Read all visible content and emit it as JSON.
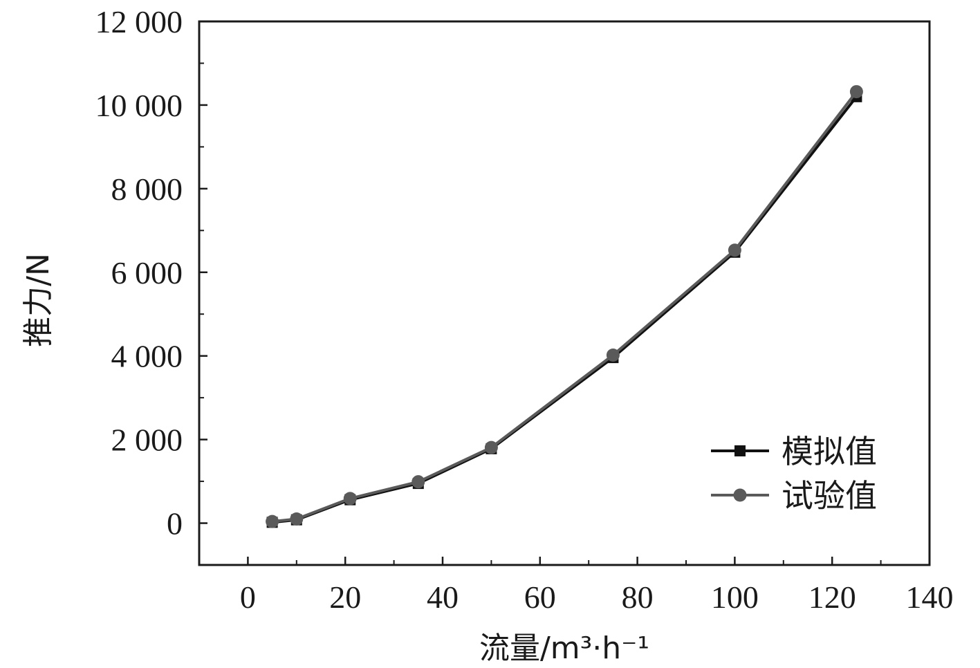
{
  "chart_data": {
    "type": "line",
    "xlabel": "流量/m³·h⁻¹",
    "ylabel": "推力/N",
    "xlim": [
      -10,
      140
    ],
    "ylim": [
      -1000,
      12000
    ],
    "x_ticks": [
      0,
      20,
      40,
      60,
      80,
      100,
      120,
      140
    ],
    "x_tick_labels": [
      "0",
      "20",
      "40",
      "60",
      "80",
      "100",
      "120",
      "140"
    ],
    "y_ticks": [
      0,
      2000,
      4000,
      6000,
      8000,
      10000,
      12000
    ],
    "y_tick_labels": [
      "0",
      "2 000",
      "4 000",
      "6 000",
      "8 000",
      "10 000",
      "12 000"
    ],
    "grid": false,
    "legend_position": "bottom-right",
    "series": [
      {
        "name": "模拟值",
        "marker": "square",
        "color": "#111111",
        "points": [
          {
            "x": 5,
            "y": 20
          },
          {
            "x": 10,
            "y": 80
          },
          {
            "x": 21,
            "y": 560
          },
          {
            "x": 35,
            "y": 950
          },
          {
            "x": 50,
            "y": 1780
          },
          {
            "x": 75,
            "y": 3960
          },
          {
            "x": 100,
            "y": 6480
          },
          {
            "x": 125,
            "y": 10200
          }
        ]
      },
      {
        "name": "试验值",
        "marker": "circle",
        "color": "#5a5a5a",
        "points": [
          {
            "x": 5,
            "y": 40
          },
          {
            "x": 10,
            "y": 100
          },
          {
            "x": 21,
            "y": 590
          },
          {
            "x": 35,
            "y": 990
          },
          {
            "x": 50,
            "y": 1810
          },
          {
            "x": 75,
            "y": 4020
          },
          {
            "x": 100,
            "y": 6530
          },
          {
            "x": 125,
            "y": 10320
          }
        ]
      }
    ]
  }
}
